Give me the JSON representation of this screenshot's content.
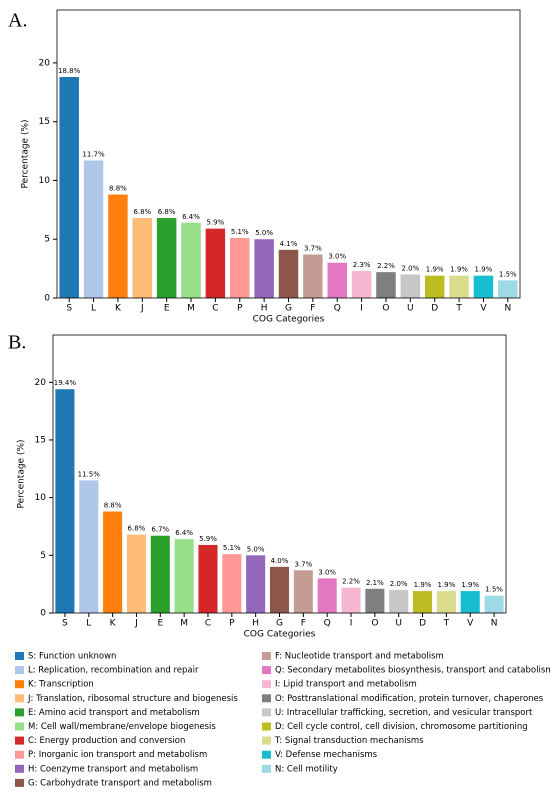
{
  "chart_data": [
    {
      "type": "bar",
      "label": "A.",
      "xlabel": "COG Categories",
      "ylabel": "Percentage (%)",
      "categories": [
        "S",
        "L",
        "K",
        "J",
        "E",
        "M",
        "C",
        "P",
        "H",
        "G",
        "F",
        "Q",
        "I",
        "O",
        "U",
        "D",
        "T",
        "V",
        "N"
      ],
      "values": [
        18.8,
        11.7,
        8.8,
        6.8,
        6.8,
        6.4,
        5.9,
        5.1,
        5.0,
        4.1,
        3.7,
        3.0,
        2.3,
        2.2,
        2.0,
        1.9,
        1.9,
        1.9,
        1.5
      ],
      "value_labels": [
        "18.8%",
        "11.7%",
        "8.8%",
        "6.8%",
        "6.8%",
        "6.4%",
        "5.9%",
        "5.1%",
        "5.0%",
        "4.1%",
        "3.7%",
        "3.0%",
        "2.3%",
        "2.2%",
        "2.0%",
        "1.9%",
        "1.9%",
        "1.9%",
        "1.5%"
      ],
      "colors": [
        "#1f77b4",
        "#aec7e8",
        "#ff7f0e",
        "#ffbb78",
        "#2ca02c",
        "#98df8a",
        "#d62728",
        "#ff9896",
        "#9467bd",
        "#8c564b",
        "#c49c94",
        "#e377c2",
        "#f7b6d2",
        "#7f7f7f",
        "#c7c7c7",
        "#bcbd22",
        "#dbdb8d",
        "#17becf",
        "#9edae5"
      ],
      "ylim": [
        0,
        24.5
      ],
      "yticks": [
        0,
        5,
        10,
        15,
        20
      ]
    },
    {
      "type": "bar",
      "label": "B.",
      "xlabel": "COG Categories",
      "ylabel": "Percentage (%)",
      "categories": [
        "S",
        "L",
        "K",
        "J",
        "E",
        "M",
        "C",
        "P",
        "H",
        "G",
        "F",
        "Q",
        "I",
        "O",
        "U",
        "D",
        "T",
        "V",
        "N"
      ],
      "values": [
        19.4,
        11.5,
        8.8,
        6.8,
        6.7,
        6.4,
        5.9,
        5.1,
        5.0,
        4.0,
        3.7,
        3.0,
        2.2,
        2.1,
        2.0,
        1.9,
        1.9,
        1.9,
        1.5
      ],
      "value_labels": [
        "19.4%",
        "11.5%",
        "8.8%",
        "6.8%",
        "6.7%",
        "6.4%",
        "5.9%",
        "5.1%",
        "5.0%",
        "4.0%",
        "3.7%",
        "3.0%",
        "2.2%",
        "2.1%",
        "2.0%",
        "1.9%",
        "1.9%",
        "1.9%",
        "1.5%"
      ],
      "colors": [
        "#1f77b4",
        "#aec7e8",
        "#ff7f0e",
        "#ffbb78",
        "#2ca02c",
        "#98df8a",
        "#d62728",
        "#ff9896",
        "#9467bd",
        "#8c564b",
        "#c49c94",
        "#e377c2",
        "#f7b6d2",
        "#7f7f7f",
        "#c7c7c7",
        "#bcbd22",
        "#dbdb8d",
        "#17becf",
        "#9edae5"
      ],
      "ylim": [
        0,
        24.1
      ],
      "yticks": [
        0,
        5,
        10,
        15,
        20
      ]
    }
  ],
  "legend": [
    {
      "label": "S: Function unknown",
      "color": "#1f77b4"
    },
    {
      "label": "L: Replication, recombination and repair",
      "color": "#aec7e8"
    },
    {
      "label": "K: Transcription",
      "color": "#ff7f0e"
    },
    {
      "label": "J: Translation, ribosomal structure and biogenesis",
      "color": "#ffbb78"
    },
    {
      "label": "E: Amino acid transport and metabolism",
      "color": "#2ca02c"
    },
    {
      "label": "M: Cell wall/membrane/envelope biogenesis",
      "color": "#98df8a"
    },
    {
      "label": "C: Energy production and conversion",
      "color": "#d62728"
    },
    {
      "label": "P: Inorganic ion transport and metabolism",
      "color": "#ff9896"
    },
    {
      "label": "H: Coenzyme transport and metabolism",
      "color": "#9467bd"
    },
    {
      "label": "G: Carbohydrate transport and metabolism",
      "color": "#8c564b"
    },
    {
      "label": "F: Nucleotide transport and metabolism",
      "color": "#c49c94"
    },
    {
      "label": "Q: Secondary metabolites biosynthesis, transport and catabolism",
      "color": "#e377c2"
    },
    {
      "label": "I: Lipid transport and metabolism",
      "color": "#f7b6d2"
    },
    {
      "label": "O: Posttranslational modification, protein turnover, chaperones",
      "color": "#7f7f7f"
    },
    {
      "label": "U: Intracellular trafficking, secretion, and vesicular transport",
      "color": "#c7c7c7"
    },
    {
      "label": "D: Cell cycle control, cell division, chromosome partitioning",
      "color": "#bcbd22"
    },
    {
      "label": "T: Signal transduction mechanisms",
      "color": "#dbdb8d"
    },
    {
      "label": "V: Defense mechanisms",
      "color": "#17becf"
    },
    {
      "label": "N: Cell motility",
      "color": "#9edae5"
    }
  ]
}
